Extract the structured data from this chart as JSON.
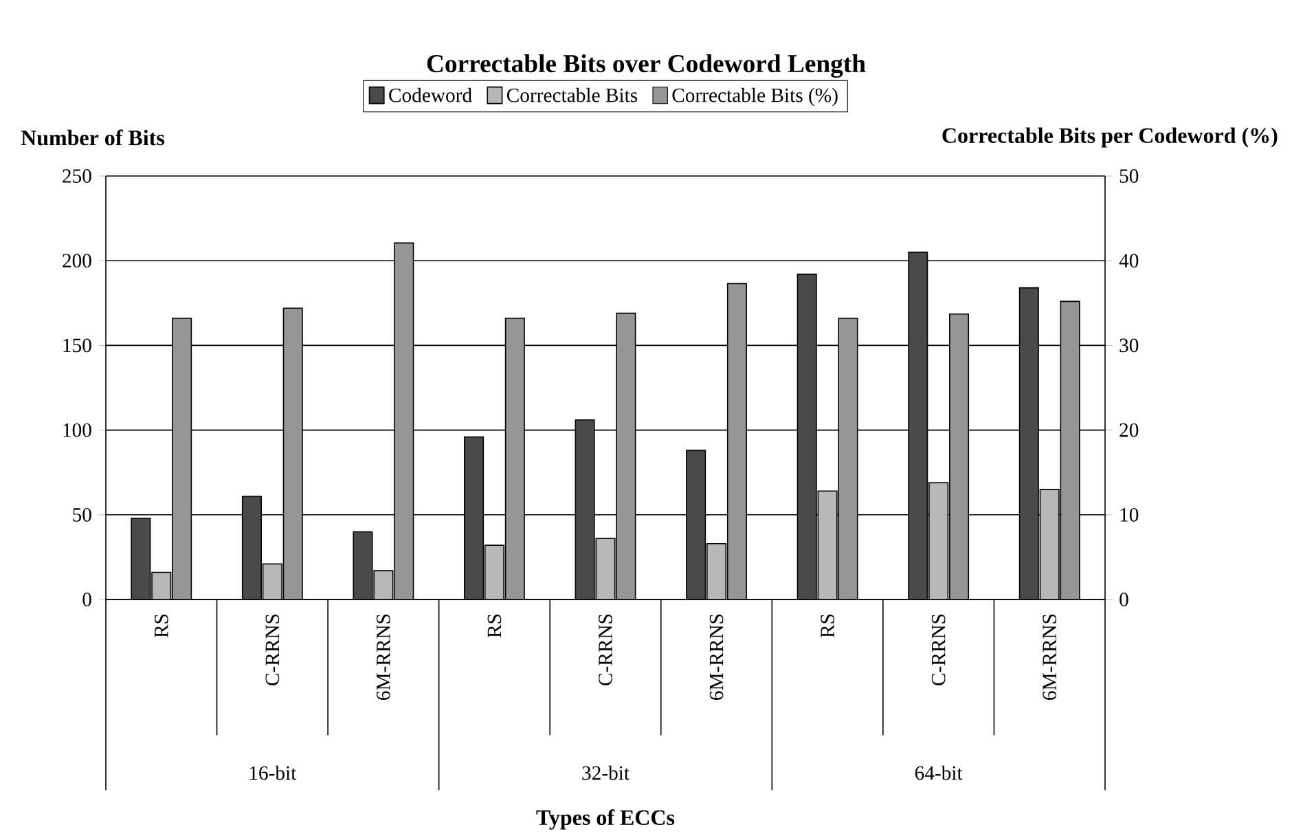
{
  "chart_data": {
    "type": "bar",
    "title": "Correctable Bits over Codeword Length",
    "xlabel": "Types of ECCs",
    "ylabel": "Number of Bits",
    "y2label": "Correctable Bits per Codeword (%)",
    "categories": [
      "RS",
      "C-RRNS",
      "6M-RRNS",
      "RS",
      "C-RRNS",
      "6M-RRNS",
      "RS",
      "C-RRNS",
      "6M-RRNS"
    ],
    "annotations": [
      "16-bit",
      "32-bit",
      "64-bit"
    ],
    "series": [
      {
        "name": "Codeword",
        "color": "#4a4a4a",
        "values": [
          48,
          61,
          40,
          96,
          106,
          88,
          192,
          205,
          184
        ]
      },
      {
        "name": "Correctable Bits",
        "color": "#b8b8b8",
        "values": [
          16,
          21,
          17,
          32,
          36,
          33,
          64,
          69,
          65
        ]
      },
      {
        "name": "Correctable Bits (%)",
        "color": "#969696",
        "axis": "y2",
        "values": [
          33.2,
          34.4,
          42.1,
          33.2,
          33.8,
          37.3,
          33.2,
          33.7,
          35.2
        ]
      }
    ],
    "ylim": [
      0,
      250
    ],
    "yticks": [
      0,
      50,
      100,
      150,
      200,
      250
    ],
    "y2lim": [
      0,
      50
    ],
    "y2ticks": [
      0,
      10,
      20,
      30,
      40,
      50
    ],
    "grid": "y",
    "legend": "top"
  }
}
